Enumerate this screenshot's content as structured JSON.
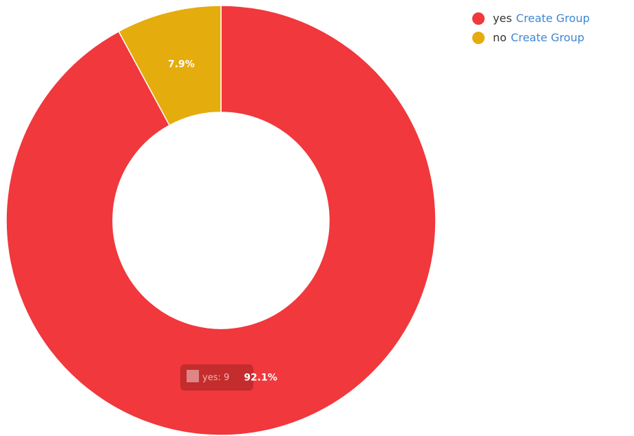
{
  "chart_data": {
    "type": "pie",
    "variant": "donut",
    "slices": [
      {
        "label": "yes",
        "value": 92.1,
        "display": "92.1%",
        "color": "#f0383d"
      },
      {
        "label": "no",
        "value": 7.9,
        "display": "7.9%",
        "color": "#e5ac0d"
      }
    ],
    "legend_placement": "top-right",
    "tooltip": {
      "text": "yes: 9",
      "color": "#bc2a2a"
    }
  },
  "legend": {
    "items": [
      {
        "name": "yes",
        "link": "Create Group",
        "color": "#f0383d"
      },
      {
        "name": "no",
        "link": "Create Group",
        "color": "#e5ac0d"
      }
    ]
  }
}
